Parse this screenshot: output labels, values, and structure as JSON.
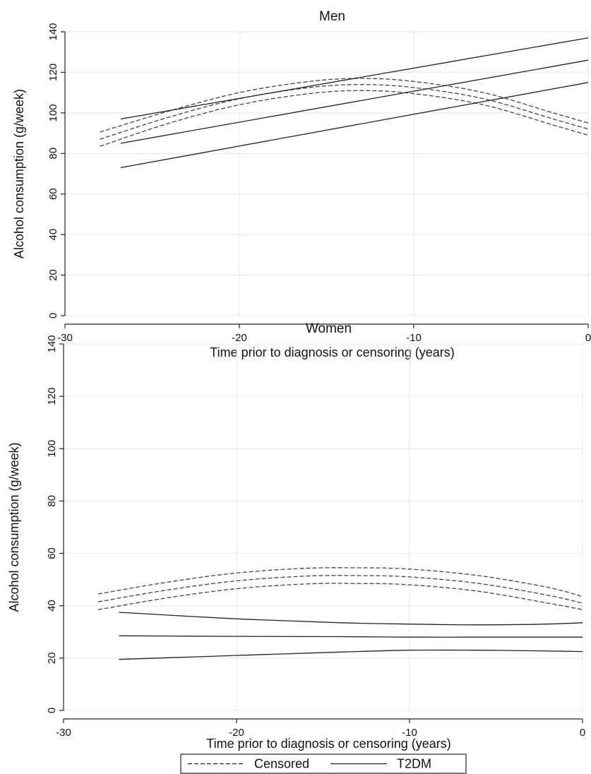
{
  "chart_data": [
    {
      "type": "line",
      "title": "Men",
      "xlabel": "Time prior to diagnosis or censoring (years)",
      "ylabel": "Alcohol consumption (g/week)",
      "xlim": [
        -30,
        0
      ],
      "ylim": [
        0,
        140
      ],
      "xticks": [
        -30,
        -20,
        -10,
        0
      ],
      "yticks": [
        0,
        20,
        40,
        60,
        80,
        100,
        120,
        140
      ],
      "grid": true,
      "series": [
        {
          "group": "Censored",
          "style": "dashed",
          "x": [
            -28,
            -24,
            -20,
            -16,
            -13,
            -10,
            -6,
            -2,
            0
          ],
          "y": [
            90.5,
            101,
            110,
            115.5,
            117,
            115.5,
            110,
            100,
            95
          ]
        },
        {
          "group": "Censored",
          "style": "dashed",
          "x": [
            -28,
            -24,
            -20,
            -16,
            -13,
            -10,
            -6,
            -2,
            0
          ],
          "y": [
            87,
            98,
            107,
            112.5,
            114,
            112.5,
            107,
            97,
            92
          ]
        },
        {
          "group": "Censored",
          "style": "dashed",
          "x": [
            -28,
            -24,
            -20,
            -16,
            -13,
            -10,
            -6,
            -2,
            0
          ],
          "y": [
            83.5,
            95,
            104,
            109.5,
            111,
            109.5,
            104,
            94,
            89
          ]
        },
        {
          "group": "T2DM",
          "style": "solid",
          "x": [
            -26.8,
            0
          ],
          "y": [
            97,
            137
          ]
        },
        {
          "group": "T2DM",
          "style": "solid",
          "x": [
            -26.8,
            0
          ],
          "y": [
            85,
            126
          ]
        },
        {
          "group": "T2DM",
          "style": "solid",
          "x": [
            -26.8,
            0
          ],
          "y": [
            73,
            115
          ]
        }
      ]
    },
    {
      "type": "line",
      "title": "Women",
      "xlabel": "Time prior to diagnosis or censoring (years)",
      "ylabel": "Alcohol consumption (g/week)",
      "xlim": [
        -30,
        0
      ],
      "ylim": [
        0,
        140
      ],
      "xticks": [
        -30,
        -20,
        -10,
        0
      ],
      "yticks": [
        0,
        20,
        40,
        60,
        80,
        100,
        120,
        140
      ],
      "grid": true,
      "series": [
        {
          "group": "Censored",
          "style": "dashed",
          "x": [
            -28,
            -24,
            -20,
            -16,
            -13,
            -10,
            -6,
            -2,
            0
          ],
          "y": [
            44.5,
            49,
            52.5,
            54.3,
            54.5,
            54,
            51.5,
            47,
            43.5
          ]
        },
        {
          "group": "Censored",
          "style": "dashed",
          "x": [
            -28,
            -24,
            -20,
            -16,
            -13,
            -10,
            -6,
            -2,
            0
          ],
          "y": [
            41.5,
            46,
            49.5,
            51.3,
            51.5,
            51,
            48.5,
            44,
            41
          ]
        },
        {
          "group": "Censored",
          "style": "dashed",
          "x": [
            -28,
            -24,
            -20,
            -16,
            -13,
            -10,
            -6,
            -2,
            0
          ],
          "y": [
            38.5,
            43,
            46.5,
            48.3,
            48.5,
            48,
            45.5,
            41,
            38.5
          ]
        },
        {
          "group": "T2DM",
          "style": "solid",
          "x": [
            -26.8,
            -20,
            -14,
            -10,
            -6,
            -2,
            0
          ],
          "y": [
            37.5,
            35,
            33.5,
            33,
            32.7,
            33,
            33.5
          ]
        },
        {
          "group": "T2DM",
          "style": "solid",
          "x": [
            -26.8,
            -20,
            -14,
            -10,
            -6,
            -2,
            0
          ],
          "y": [
            28.5,
            28.3,
            28.2,
            28,
            28,
            28,
            28
          ]
        },
        {
          "group": "T2DM",
          "style": "solid",
          "x": [
            -26.8,
            -20,
            -14,
            -10,
            -6,
            -2,
            0
          ],
          "y": [
            19.5,
            21,
            22.3,
            23,
            23,
            22.7,
            22.5
          ]
        }
      ]
    }
  ],
  "legend": {
    "placement": "bottom-center",
    "items": [
      {
        "label": "Censored",
        "style": "dashed"
      },
      {
        "label": "T2DM",
        "style": "solid"
      }
    ]
  }
}
